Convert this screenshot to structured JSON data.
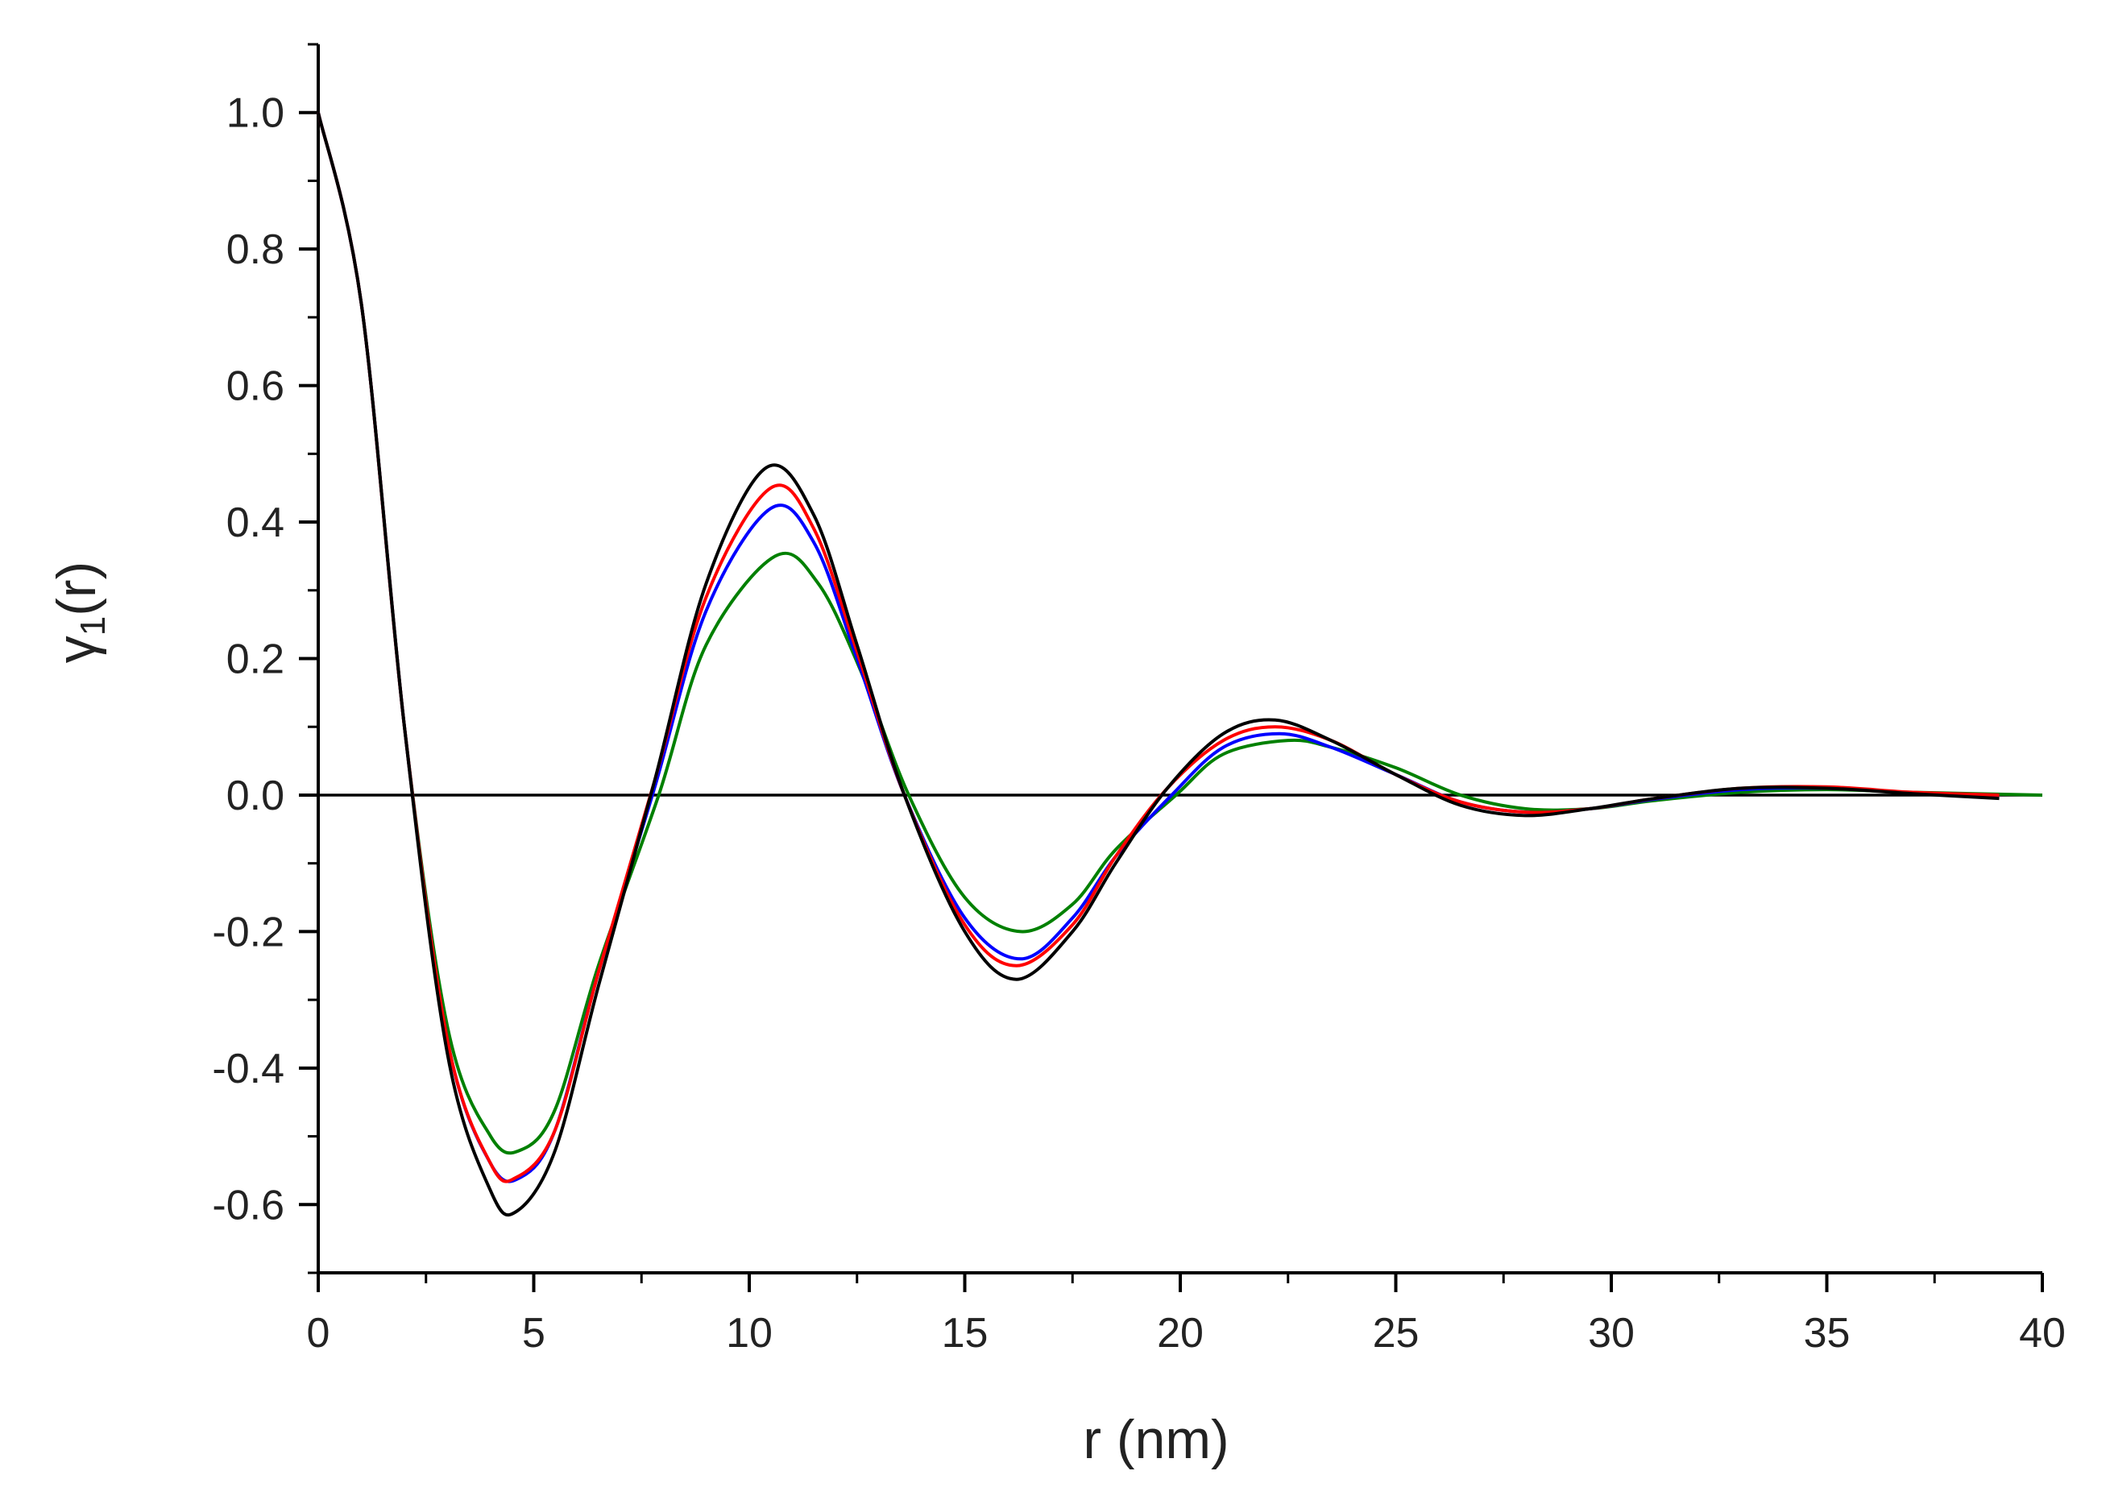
{
  "chart_data": {
    "type": "line",
    "title": "",
    "xlabel": "r (nm)",
    "ylabel_main": "γ",
    "ylabel_sub": "1",
    "ylabel_tail": "(r)",
    "xlim": [
      0,
      40
    ],
    "ylim": [
      -0.7,
      1.1
    ],
    "x_ticks": [
      0,
      5,
      10,
      15,
      20,
      25,
      30,
      35,
      40
    ],
    "y_ticks": [
      1.0,
      0.8,
      0.6,
      0.4,
      0.2,
      0.0,
      -0.2,
      -0.4,
      -0.6
    ],
    "x_tick_labels": [
      "0",
      "5",
      "10",
      "15",
      "20",
      "25",
      "30",
      "35",
      "40"
    ],
    "y_tick_labels": [
      "1.0",
      "0.8",
      "0.6",
      "0.4",
      "0.2",
      "0.0",
      "-0.2",
      "-0.4",
      "-0.6"
    ],
    "grid": false,
    "zero_line": true,
    "series": [
      {
        "color": "#000000",
        "x": [
          0,
          1,
          2,
          3,
          4,
          4.6,
          5.5,
          6.5,
          7.8,
          9,
          10.4,
          11.5,
          12.5,
          13.6,
          15,
          16.2,
          17.5,
          18.5,
          19.7,
          21,
          22.2,
          23.5,
          25,
          26.5,
          28,
          29.5,
          31,
          33,
          35,
          37,
          39
        ],
        "y": [
          1.0,
          0.72,
          0.1,
          -0.38,
          -0.58,
          -0.61,
          -0.52,
          -0.28,
          0.02,
          0.31,
          0.48,
          0.41,
          0.22,
          0.0,
          -0.2,
          -0.27,
          -0.2,
          -0.1,
          0.01,
          0.09,
          0.11,
          0.08,
          0.03,
          -0.015,
          -0.03,
          -0.02,
          -0.005,
          0.01,
          0.01,
          0.002,
          -0.005
        ]
      },
      {
        "color": "#ff0000",
        "x": [
          0,
          1,
          2,
          3,
          4,
          4.6,
          5.5,
          6.5,
          7.8,
          9,
          10.5,
          11.5,
          12.5,
          13.6,
          15,
          16.2,
          17.5,
          18.5,
          19.7,
          21,
          22.2,
          23.5,
          25,
          26.5,
          28,
          29.5,
          31,
          33,
          35,
          37,
          39
        ],
        "y": [
          1.0,
          0.72,
          0.1,
          -0.36,
          -0.54,
          -0.56,
          -0.49,
          -0.26,
          0.02,
          0.29,
          0.45,
          0.39,
          0.21,
          0.0,
          -0.19,
          -0.25,
          -0.19,
          -0.09,
          0.01,
          0.08,
          0.1,
          0.08,
          0.03,
          -0.01,
          -0.025,
          -0.02,
          -0.005,
          0.01,
          0.012,
          0.004,
          0.0
        ]
      },
      {
        "color": "#0000ff",
        "x": [
          0,
          1,
          2,
          3,
          4,
          4.7,
          5.5,
          6.5,
          7.8,
          9,
          10.5,
          11.5,
          12.5,
          13.6,
          15,
          16.3,
          17.5,
          18.5,
          19.8,
          21,
          22.3,
          23.5,
          25,
          26.5,
          28,
          29.5,
          31,
          33,
          35,
          37,
          39
        ],
        "y": [
          1.0,
          0.72,
          0.1,
          -0.36,
          -0.54,
          -0.56,
          -0.49,
          -0.26,
          0.01,
          0.27,
          0.42,
          0.37,
          0.2,
          0.0,
          -0.18,
          -0.24,
          -0.18,
          -0.09,
          0.0,
          0.07,
          0.09,
          0.07,
          0.03,
          -0.01,
          -0.025,
          -0.02,
          -0.006,
          0.008,
          0.01,
          0.003,
          -0.002
        ]
      },
      {
        "color": "#008000",
        "x": [
          0,
          1,
          2,
          3,
          4,
          4.7,
          5.5,
          6.5,
          7.9,
          9,
          10.6,
          11.6,
          12.6,
          13.7,
          15,
          16.3,
          17.5,
          18.5,
          19.9,
          21,
          22.5,
          23.5,
          25,
          26.5,
          28,
          29.5,
          31,
          33,
          35,
          37,
          40
        ],
        "y": [
          1.0,
          0.72,
          0.1,
          -0.34,
          -0.5,
          -0.52,
          -0.46,
          -0.25,
          0.0,
          0.22,
          0.35,
          0.31,
          0.18,
          0.0,
          -0.15,
          -0.2,
          -0.16,
          -0.08,
          0.0,
          0.06,
          0.08,
          0.07,
          0.04,
          0.0,
          -0.02,
          -0.02,
          -0.008,
          0.004,
          0.008,
          0.004,
          0.0
        ]
      }
    ]
  }
}
